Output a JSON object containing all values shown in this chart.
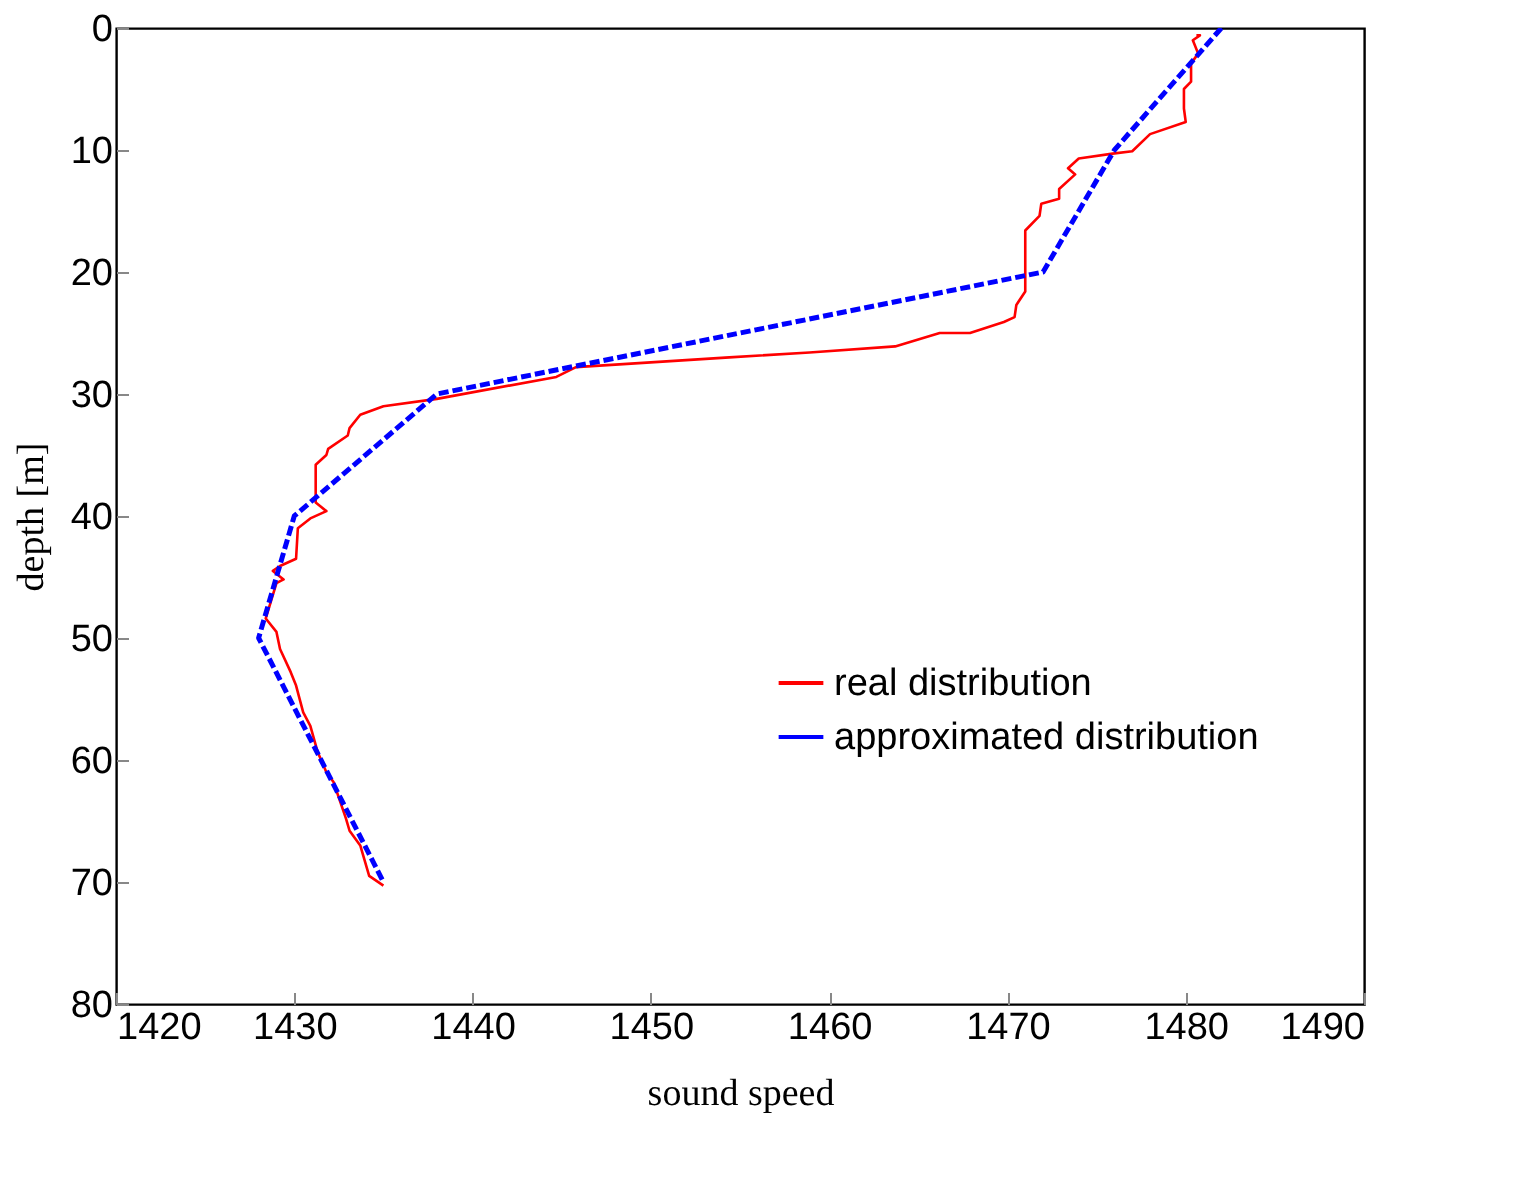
{
  "chart_data": {
    "type": "line",
    "xlabel": "sound speed",
    "ylabel": "depth [m]",
    "xlim": [
      1420,
      1490
    ],
    "xticks": [
      1420,
      1430,
      1440,
      1450,
      1460,
      1470,
      1480,
      1490
    ],
    "ylim": [
      80,
      0
    ],
    "yticks": [
      0,
      10,
      20,
      30,
      40,
      50,
      60,
      70,
      80
    ],
    "grid": false,
    "legend": "right",
    "series": [
      {
        "name": "real distribution",
        "color": "#ff0000",
        "line_style": "solid",
        "x": [
          1480.6,
          1480.8,
          1480.4,
          1480.7,
          1480.3,
          1480.3,
          1479.9,
          1479.9,
          1480.0,
          1478.0,
          1477.0,
          1475.9,
          1474.0,
          1473.4,
          1473.8,
          1472.9,
          1472.9,
          1471.9,
          1471.8,
          1471.0,
          1471.0,
          1470.5,
          1470.4,
          1469.8,
          1467.9,
          1466.2,
          1463.7,
          1458.9,
          1454.4,
          1445.8,
          1444.7,
          1438.0,
          1435.0,
          1433.7,
          1433.1,
          1433.0,
          1431.9,
          1431.8,
          1431.2,
          1431.2,
          1431.8,
          1430.9,
          1430.2,
          1430.1,
          1429.2,
          1428.8,
          1429.4,
          1429.0,
          1428.4,
          1429.0,
          1429.2,
          1429.8,
          1430.1,
          1430.5,
          1430.9,
          1431.3,
          1431.8,
          1432.2,
          1432.9,
          1433.1,
          1433.7,
          1434.2,
          1435.0
        ],
        "values": [
          0.6,
          0.6,
          1.0,
          2.1,
          2.9,
          4.4,
          5.0,
          6.6,
          7.7,
          8.7,
          10.1,
          10.3,
          10.7,
          11.5,
          12.0,
          13.2,
          14.0,
          14.4,
          15.4,
          16.6,
          21.6,
          22.7,
          23.7,
          24.1,
          25.0,
          25.0,
          26.1,
          26.6,
          27.0,
          27.8,
          28.6,
          30.4,
          31.0,
          31.7,
          32.8,
          33.4,
          34.5,
          35.0,
          35.8,
          38.9,
          39.6,
          40.2,
          41.0,
          43.5,
          44.1,
          44.5,
          45.2,
          45.5,
          48.4,
          49.5,
          50.9,
          52.8,
          53.9,
          56.1,
          57.2,
          59.3,
          61.0,
          61.8,
          64.8,
          65.8,
          67.0,
          69.5,
          70.3
        ]
      },
      {
        "name": "approximated distribution",
        "color": "#0000ff",
        "line_style": "dashed",
        "x": [
          1482,
          1476,
          1472,
          1438,
          1430,
          1428,
          1435
        ],
        "values": [
          0,
          10,
          20,
          30,
          40,
          50,
          70
        ]
      }
    ]
  }
}
